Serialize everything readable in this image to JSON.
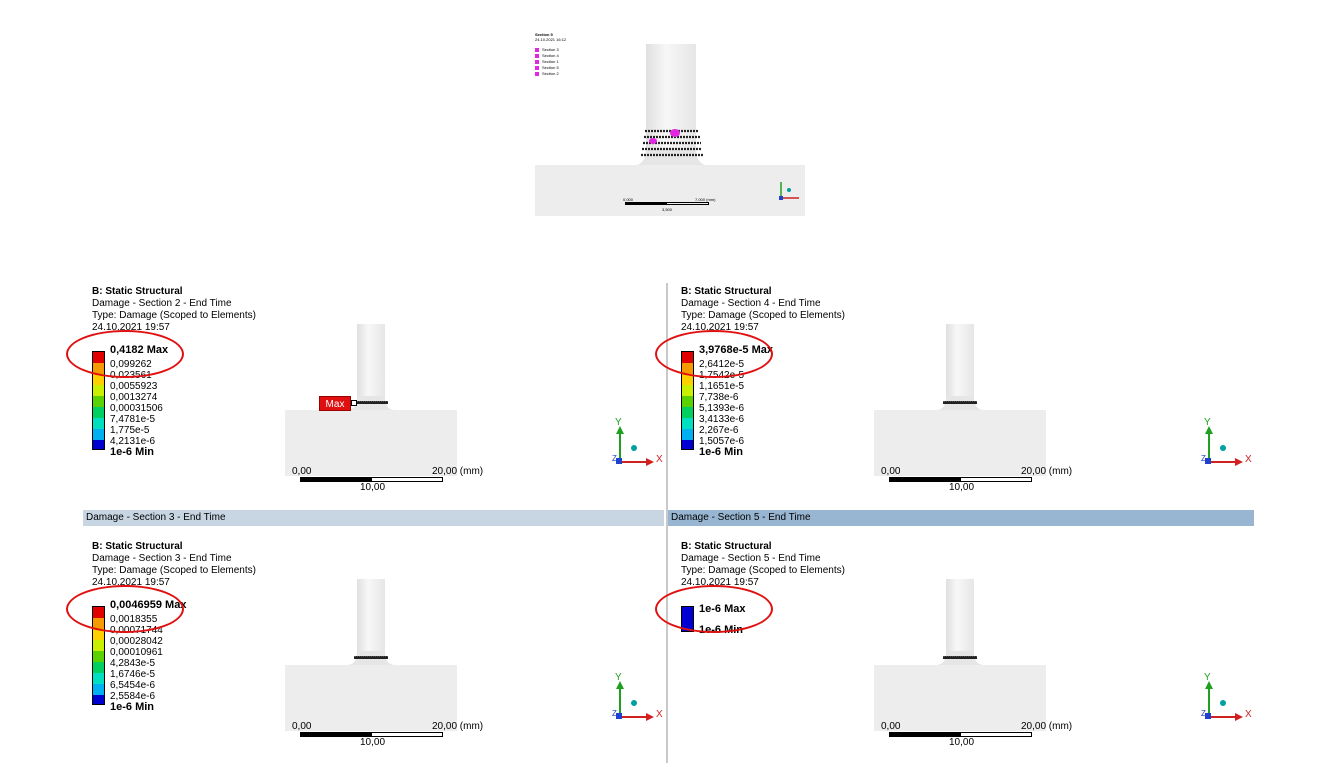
{
  "overview": {
    "title": "Section 5",
    "date": "24.10.2021 16:12",
    "sections": [
      "Section 3",
      "Section 4",
      "Section 1",
      "Section 5",
      "Section 2"
    ],
    "scale_left": "0,000",
    "scale_right": "7,000 (mm)",
    "scale_mid": "3,500",
    "section_color": "#e028e0"
  },
  "panels": [
    {
      "tab": "",
      "title": "B: Static Structural",
      "line2": "Damage - Section 2 - End Time",
      "line3": "Type: Damage (Scoped to Elements)",
      "line4": "24.10.2021 19:57",
      "legend": [
        "0,4182 Max",
        "0,099262",
        "0,023561",
        "0,0055923",
        "0,0013274",
        "0,00031506",
        "7,4781e-5",
        "1,775e-5",
        "4,2131e-6",
        "1e-6 Min"
      ],
      "max_probe": "Max",
      "scale_left": "0,00",
      "scale_right": "20,00 (mm)",
      "scale_mid": "10,00",
      "axis_y": "Y",
      "axis_x": "X",
      "axis_z": "Z"
    },
    {
      "tab": "",
      "title": "B: Static Structural",
      "line2": "Damage - Section 4 - End Time",
      "line3": "Type: Damage (Scoped to Elements)",
      "line4": "24.10.2021 19:57",
      "legend": [
        "3,9768e-5 Max",
        "2,6412e-5",
        "1,7542e-5",
        "1,1651e-5",
        "7,738e-6",
        "5,1393e-6",
        "3,4133e-6",
        "2,267e-6",
        "1,5057e-6",
        "1e-6 Min"
      ],
      "scale_left": "0,00",
      "scale_right": "20,00 (mm)",
      "scale_mid": "10,00",
      "axis_y": "Y",
      "axis_x": "X",
      "axis_z": "Z"
    },
    {
      "tab": "Damage - Section 3 - End Time",
      "title": "B: Static Structural",
      "line2": "Damage - Section 3 - End Time",
      "line3": "Type: Damage (Scoped to Elements)",
      "line4": "24.10.2021 19:57",
      "legend": [
        "0,0046959 Max",
        "0,0018355",
        "0,00071744",
        "0,00028042",
        "0,00010961",
        "4,2843e-5",
        "1,6746e-5",
        "6,5454e-6",
        "2,5584e-6",
        "1e-6 Min"
      ],
      "scale_left": "0,00",
      "scale_right": "20,00 (mm)",
      "scale_mid": "10,00",
      "axis_y": "Y",
      "axis_x": "X",
      "axis_z": "Z"
    },
    {
      "tab": "Damage - Section 5 - End Time",
      "title": "B: Static Structural",
      "line2": "Damage - Section 5 - End Time",
      "line3": "Type: Damage (Scoped to Elements)",
      "line4": "24.10.2021 19:57",
      "legend": [
        "1e-6 Max",
        "1e-6 Min"
      ],
      "scale_left": "0,00",
      "scale_right": "20,00 (mm)",
      "scale_mid": "10,00",
      "axis_y": "Y",
      "axis_x": "X",
      "axis_z": "Z"
    }
  ],
  "colors": {
    "legend_bands": [
      "#e00000",
      "#f59b00",
      "#ffd000",
      "#c8f000",
      "#5ad200",
      "#00d060",
      "#00e0c0",
      "#00b0f0",
      "#0050f0",
      "#0000d0"
    ],
    "annotation_ring": "#e01010",
    "tab_inactive": "#c8d6e4",
    "tab_active": "#98b6d2"
  }
}
